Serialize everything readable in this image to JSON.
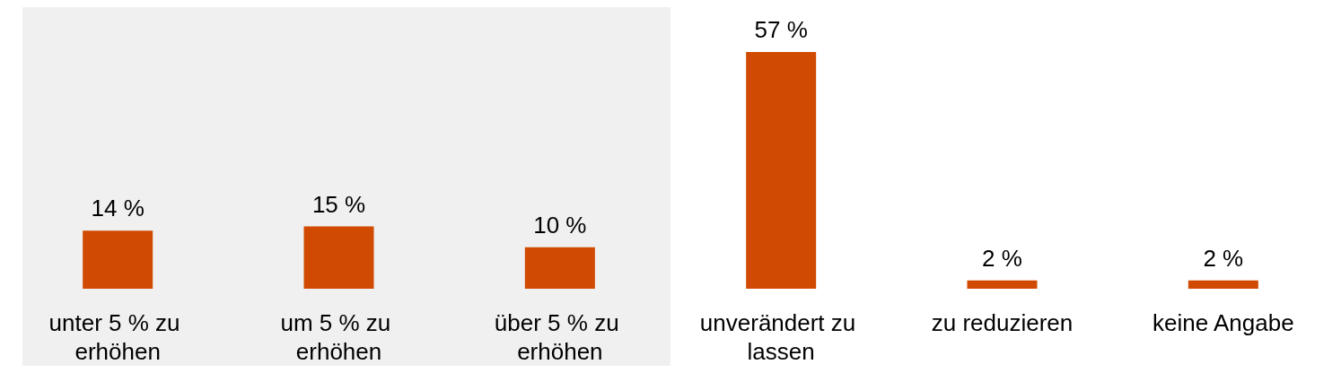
{
  "chart_data": {
    "type": "bar",
    "categories": [
      "unter 5 % zu erhöhen",
      "um 5 % zu erhöhen",
      "über 5 % zu erhöhen",
      "unverändert zu lassen",
      "zu reduzieren",
      "keine Angabe"
    ],
    "values": [
      14,
      15,
      10,
      57,
      2,
      2
    ],
    "value_labels": [
      "14 %",
      "15 %",
      "10 %",
      "57 %",
      "2 %",
      "2 %"
    ],
    "color": "#d04a02",
    "bands": [
      {
        "axis": "x",
        "from": "unter 5 % zu erhöhen",
        "to": "über 5 % zu erhöhen",
        "color": "#f0f0f0"
      }
    ],
    "orientation": "vertical"
  }
}
